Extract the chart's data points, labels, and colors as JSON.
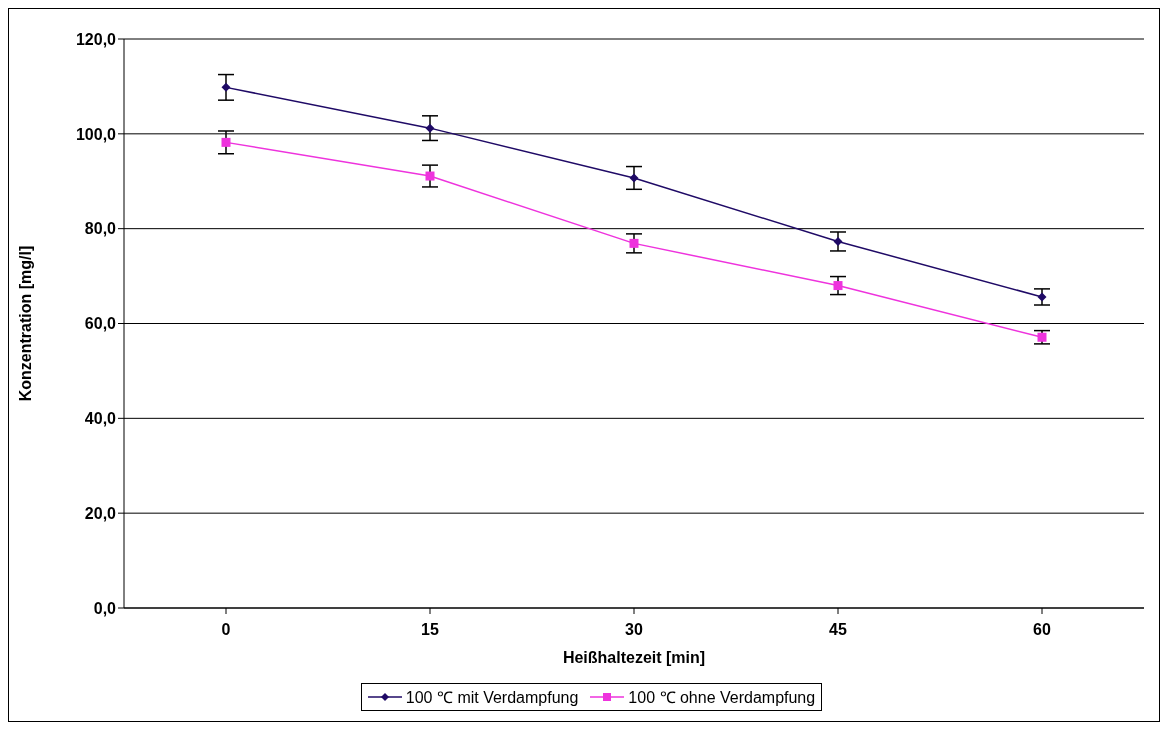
{
  "chart_data": {
    "type": "line",
    "xlabel": "Heißhaltezeit [min]",
    "ylabel": "Konzentration [mg/l]",
    "categories": [
      "0",
      "15",
      "30",
      "45",
      "60"
    ],
    "series": [
      {
        "name": "100 ℃ mit Verdampfung",
        "color": "#1f0a66",
        "marker": "diamond",
        "values": [
          109.8,
          101.2,
          90.7,
          77.3,
          65.6
        ],
        "errors": [
          2.7,
          2.6,
          2.4,
          2.0,
          1.7
        ]
      },
      {
        "name": "100 ℃ ohne Verdampfung",
        "color": "#ee33dd",
        "marker": "square",
        "values": [
          98.2,
          91.1,
          76.9,
          68.0,
          57.1
        ],
        "errors": [
          2.4,
          2.3,
          2.0,
          1.9,
          1.4
        ]
      }
    ],
    "ylim": [
      0,
      120
    ],
    "yticks": [
      {
        "value": 0,
        "label": "0,0"
      },
      {
        "value": 20,
        "label": "20,0"
      },
      {
        "value": 40,
        "label": "40,0"
      },
      {
        "value": 60,
        "label": "60,0"
      },
      {
        "value": 80,
        "label": "80,0"
      },
      {
        "value": 100,
        "label": "100,0"
      },
      {
        "value": 120,
        "label": "120,0"
      }
    ],
    "grid": "y",
    "legend": "bottom",
    "line_style": "solid"
  }
}
